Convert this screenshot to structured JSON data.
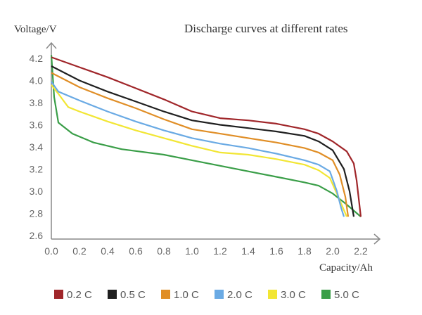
{
  "chart_data": {
    "type": "line",
    "title": "Discharge curves at different rates",
    "xlabel": "Capacity/Ah",
    "ylabel": "Voltage/V",
    "xlim": [
      0,
      2.2
    ],
    "ylim": [
      2.6,
      4.2
    ],
    "xticks": [
      "0.0",
      "0.2",
      "0.4",
      "0.6",
      "0.8",
      "1.0",
      "1.2",
      "1.4",
      "1.6",
      "1.8",
      "2.0",
      "2.2"
    ],
    "yticks": [
      "2.6",
      "2.8",
      "3.0",
      "3.2",
      "3.4",
      "3.6",
      "3.8",
      "4.0",
      "4.2"
    ],
    "grid": false,
    "legend_placement": "bottom",
    "series": [
      {
        "name": "0.2 C",
        "color": "#a0262a",
        "points": [
          [
            0,
            4.21
          ],
          [
            0.2,
            4.12
          ],
          [
            0.4,
            4.03
          ],
          [
            0.6,
            3.93
          ],
          [
            0.8,
            3.83
          ],
          [
            1.0,
            3.72
          ],
          [
            1.2,
            3.66
          ],
          [
            1.4,
            3.64
          ],
          [
            1.6,
            3.61
          ],
          [
            1.8,
            3.56
          ],
          [
            1.9,
            3.52
          ],
          [
            2.0,
            3.45
          ],
          [
            2.1,
            3.36
          ],
          [
            2.15,
            3.25
          ],
          [
            2.17,
            3.1
          ],
          [
            2.2,
            2.77
          ]
        ]
      },
      {
        "name": "0.5 C",
        "color": "#1f1f1f",
        "points": [
          [
            0,
            4.13
          ],
          [
            0.2,
            4.0
          ],
          [
            0.4,
            3.9
          ],
          [
            0.6,
            3.81
          ],
          [
            0.8,
            3.72
          ],
          [
            1.0,
            3.64
          ],
          [
            1.2,
            3.6
          ],
          [
            1.4,
            3.57
          ],
          [
            1.6,
            3.54
          ],
          [
            1.8,
            3.5
          ],
          [
            1.9,
            3.45
          ],
          [
            2.0,
            3.37
          ],
          [
            2.08,
            3.2
          ],
          [
            2.12,
            3.0
          ],
          [
            2.15,
            2.77
          ]
        ]
      },
      {
        "name": "1.0 C",
        "color": "#e08e26",
        "points": [
          [
            0,
            4.07
          ],
          [
            0.2,
            3.94
          ],
          [
            0.4,
            3.84
          ],
          [
            0.6,
            3.75
          ],
          [
            0.8,
            3.65
          ],
          [
            1.0,
            3.56
          ],
          [
            1.2,
            3.52
          ],
          [
            1.4,
            3.48
          ],
          [
            1.6,
            3.44
          ],
          [
            1.8,
            3.39
          ],
          [
            1.9,
            3.35
          ],
          [
            2.0,
            3.28
          ],
          [
            2.05,
            3.15
          ],
          [
            2.09,
            2.95
          ],
          [
            2.11,
            2.77
          ]
        ]
      },
      {
        "name": "2.0 C",
        "color": "#6aaae4",
        "points": [
          [
            0,
            3.99
          ],
          [
            0.05,
            3.9
          ],
          [
            0.2,
            3.82
          ],
          [
            0.4,
            3.72
          ],
          [
            0.6,
            3.63
          ],
          [
            0.8,
            3.55
          ],
          [
            1.0,
            3.48
          ],
          [
            1.2,
            3.43
          ],
          [
            1.4,
            3.39
          ],
          [
            1.6,
            3.34
          ],
          [
            1.8,
            3.28
          ],
          [
            1.9,
            3.24
          ],
          [
            1.98,
            3.18
          ],
          [
            2.03,
            3.0
          ],
          [
            2.06,
            2.85
          ],
          [
            2.08,
            2.77
          ]
        ]
      },
      {
        "name": "3.0 C",
        "color": "#f2e634",
        "points": [
          [
            0,
            3.96
          ],
          [
            0.05,
            3.88
          ],
          [
            0.12,
            3.76
          ],
          [
            0.2,
            3.72
          ],
          [
            0.4,
            3.63
          ],
          [
            0.6,
            3.55
          ],
          [
            0.8,
            3.48
          ],
          [
            1.0,
            3.41
          ],
          [
            1.2,
            3.35
          ],
          [
            1.4,
            3.33
          ],
          [
            1.6,
            3.29
          ],
          [
            1.8,
            3.24
          ],
          [
            1.9,
            3.19
          ],
          [
            1.98,
            3.12
          ],
          [
            2.04,
            2.95
          ],
          [
            2.1,
            2.77
          ]
        ]
      },
      {
        "name": "5.0 C",
        "color": "#3a9e48",
        "points": [
          [
            0,
            4.23
          ],
          [
            0.02,
            3.85
          ],
          [
            0.05,
            3.62
          ],
          [
            0.15,
            3.52
          ],
          [
            0.3,
            3.44
          ],
          [
            0.5,
            3.38
          ],
          [
            0.8,
            3.33
          ],
          [
            1.0,
            3.28
          ],
          [
            1.2,
            3.23
          ],
          [
            1.4,
            3.18
          ],
          [
            1.6,
            3.13
          ],
          [
            1.8,
            3.08
          ],
          [
            1.9,
            3.05
          ],
          [
            2.0,
            2.98
          ],
          [
            2.1,
            2.88
          ],
          [
            2.2,
            2.77
          ]
        ]
      }
    ]
  }
}
